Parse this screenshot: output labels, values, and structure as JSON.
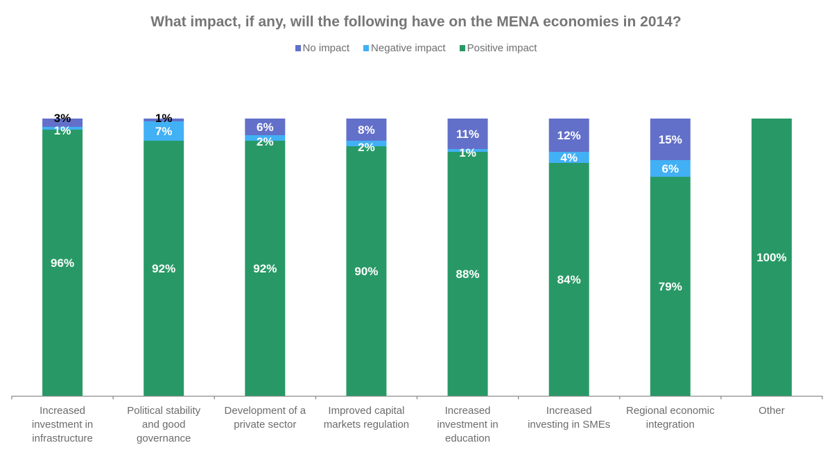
{
  "chart_data": {
    "type": "bar",
    "stacked": true,
    "title": "What impact, if any, will the following have  on the MENA economies in 2014?",
    "xlabel": "",
    "ylabel": "",
    "ylim": [
      0,
      100
    ],
    "grid": false,
    "legend_position": "top",
    "categories": [
      [
        "Increased",
        "investment in",
        "infrastructure"
      ],
      [
        "Political stability",
        "and good",
        "governance"
      ],
      [
        "Development of a",
        "private sector"
      ],
      [
        "Improved capital",
        "markets regulation"
      ],
      [
        "Increased",
        "investment in",
        "education"
      ],
      [
        "Increased",
        "investing in SMEs"
      ],
      [
        "Regional economic",
        "integration"
      ],
      [
        "Other"
      ]
    ],
    "series": [
      {
        "name": "Positive impact",
        "color": "#289966",
        "values": [
          96,
          92,
          92,
          90,
          88,
          84,
          79,
          100
        ],
        "labels": [
          "96%",
          "92%",
          "92%",
          "90%",
          "88%",
          "84%",
          "79%",
          "100%"
        ],
        "label_color": "#ffffff"
      },
      {
        "name": "Negative impact",
        "color": "#42b0f5",
        "values": [
          1,
          7,
          2,
          2,
          1,
          4,
          6,
          0
        ],
        "labels": [
          "1%",
          "7%",
          "2%",
          "2%",
          "1%",
          "4%",
          "6%",
          ""
        ],
        "label_color": "#ffffff"
      },
      {
        "name": "No impact",
        "color": "#6270c9",
        "values": [
          3,
          1,
          6,
          8,
          11,
          12,
          15,
          0
        ],
        "labels": [
          "3%",
          "1%",
          "6%",
          "8%",
          "11%",
          "12%",
          "15%",
          ""
        ],
        "label_color": "#ffffff",
        "dark_label_indices": [
          0,
          1
        ]
      }
    ],
    "legend_order": [
      "No impact",
      "Negative impact",
      "Positive impact"
    ]
  }
}
